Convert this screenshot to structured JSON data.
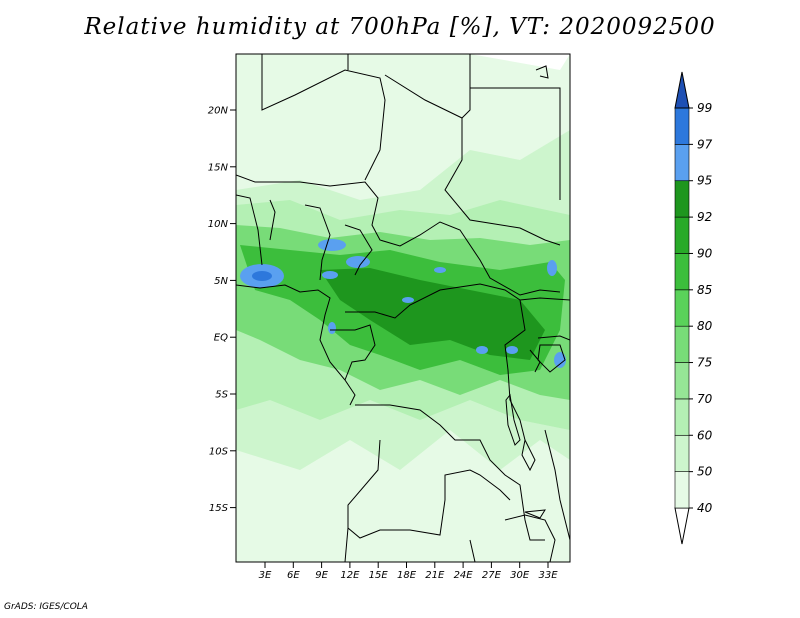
{
  "title": "Relative humidity at 700hPa [%], VT: 2020092500",
  "credit": "GrADS: IGES/COLA",
  "map": {
    "lon_range": [
      0,
      35
    ],
    "lat_range": [
      -20,
      25
    ],
    "lat_ticks": [
      "20N",
      "15N",
      "10N",
      "5N",
      "EQ",
      "5S",
      "10S",
      "15S"
    ],
    "lon_ticks": [
      "3E",
      "6E",
      "9E",
      "12E",
      "15E",
      "18E",
      "21E",
      "24E",
      "27E",
      "30E",
      "33E"
    ]
  },
  "colorbar": {
    "levels": [
      "40",
      "50",
      "60",
      "70",
      "75",
      "80",
      "85",
      "90",
      "92",
      "95",
      "97",
      "99"
    ],
    "colors": [
      "#ffffff",
      "#e6fae6",
      "#cdf5cd",
      "#b4f0b4",
      "#96e696",
      "#78dc78",
      "#5ad25a",
      "#3cbe3c",
      "#28aa28",
      "#1e961e",
      "#5aa0f0",
      "#2d78dc",
      "#1e50b4"
    ]
  }
}
